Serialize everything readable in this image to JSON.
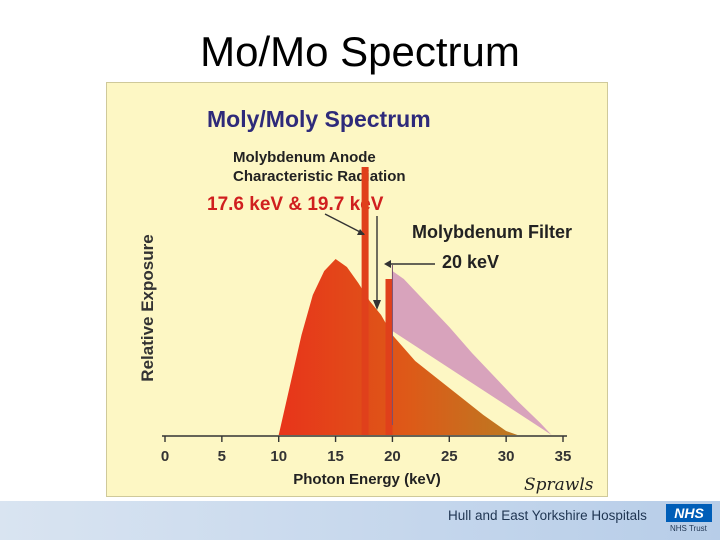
{
  "slide": {
    "title": "Mo/Mo Spectrum"
  },
  "chart_data": {
    "type": "area",
    "title": "Moly/Moly Spectrum",
    "xlabel": "Photon Energy (keV)",
    "ylabel": "Relative Exposure",
    "xlim": [
      0,
      35
    ],
    "ylim": [
      0,
      1
    ],
    "x_ticks": [
      "0",
      "5",
      "10",
      "15",
      "20",
      "25",
      "30",
      "35"
    ],
    "series": [
      {
        "name": "",
        "points": [
          [
            10,
            0
          ],
          [
            11,
            0.25
          ],
          [
            12,
            0.5
          ],
          [
            13,
            0.7
          ],
          [
            14,
            0.82
          ],
          [
            15,
            0.88
          ],
          [
            16,
            0.84
          ],
          [
            17,
            0.76
          ],
          [
            18,
            0.67
          ],
          [
            19,
            0.6
          ],
          [
            20,
            0.5
          ],
          [
            22,
            0.37
          ],
          [
            24,
            0.28
          ],
          [
            26,
            0.19
          ],
          [
            28,
            0.1
          ],
          [
            30,
            0.02
          ],
          [
            31,
            0
          ]
        ]
      },
      {
        "name": "",
        "points": [
          [
            20,
            0.52
          ],
          [
            20,
            0.82
          ],
          [
            21,
            0.78
          ],
          [
            23,
            0.66
          ],
          [
            25,
            0.54
          ],
          [
            27,
            0.41
          ],
          [
            29,
            0.29
          ],
          [
            31,
            0.17
          ],
          [
            33,
            0.06
          ],
          [
            34,
            0
          ]
        ]
      }
    ],
    "lines": [
      {
        "x": 17.6,
        "value": 1.34
      },
      {
        "x": 19.7,
        "value": 0.78
      }
    ],
    "annotations": [
      {
        "line1": "Molybdenum Anode",
        "line2": "Characteristic Radiation",
        "highlight": "17.6 keV & 19.7 keV"
      },
      {
        "line1": "Molybdenum Filter",
        "highlight": "20 keV"
      }
    ],
    "signature": "Sprawls",
    "colors": {
      "title": "#2e2a7a",
      "highlight": "#d01f1f",
      "filtered": "#c982b8",
      "background": "#fdf7c4"
    }
  },
  "footer": {
    "organization": "Hull and East Yorkshire Hospitals",
    "logo": "NHS",
    "trust": "NHS Trust"
  }
}
